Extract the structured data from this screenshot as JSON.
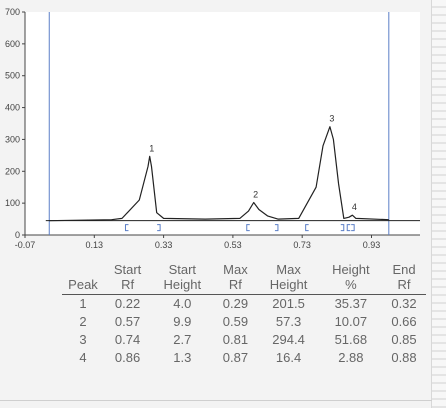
{
  "chart_data": {
    "type": "line",
    "xlim": [
      -0.07,
      1.07
    ],
    "ylim": [
      0,
      700
    ],
    "x_ticks": [
      "-0.07",
      "0.13",
      "0.33",
      "0.53",
      "0.73",
      "0.93"
    ],
    "y_ticks": [
      "0",
      "100",
      "200",
      "300",
      "400",
      "500",
      "600",
      "700"
    ],
    "baseline": 45,
    "front_rf": 0.0,
    "end_rf": 0.98,
    "series": [
      {
        "values": [
          [
            0.0,
            45
          ],
          [
            0.18,
            48
          ],
          [
            0.21,
            52
          ],
          [
            0.26,
            110
          ],
          [
            0.285,
            215
          ],
          [
            0.29,
            247
          ],
          [
            0.295,
            215
          ],
          [
            0.31,
            70
          ],
          [
            0.33,
            52
          ],
          [
            0.45,
            50
          ],
          [
            0.55,
            52
          ],
          [
            0.575,
            75
          ],
          [
            0.59,
            102
          ],
          [
            0.605,
            80
          ],
          [
            0.63,
            60
          ],
          [
            0.66,
            50
          ],
          [
            0.72,
            52
          ],
          [
            0.77,
            150
          ],
          [
            0.79,
            280
          ],
          [
            0.81,
            340
          ],
          [
            0.82,
            300
          ],
          [
            0.835,
            160
          ],
          [
            0.85,
            52
          ],
          [
            0.865,
            56
          ],
          [
            0.875,
            62
          ],
          [
            0.885,
            52
          ],
          [
            0.98,
            48
          ]
        ]
      }
    ],
    "peaks": [
      {
        "label": "1",
        "x": 0.29,
        "y": 247
      },
      {
        "label": "2",
        "x": 0.59,
        "y": 102
      },
      {
        "label": "3",
        "x": 0.81,
        "y": 340
      },
      {
        "label": "4",
        "x": 0.875,
        "y": 62
      }
    ],
    "brackets": [
      {
        "start": 0.22,
        "end": 0.32
      },
      {
        "start": 0.57,
        "end": 0.66
      },
      {
        "start": 0.74,
        "end": 0.85
      },
      {
        "start": 0.86,
        "end": 0.88
      }
    ]
  },
  "table": {
    "headers": [
      {
        "line1": "",
        "line2": "Peak"
      },
      {
        "line1": "Start",
        "line2": "Rf"
      },
      {
        "line1": "Start",
        "line2": "Height"
      },
      {
        "line1": "Max",
        "line2": "Rf"
      },
      {
        "line1": "Max",
        "line2": "Height"
      },
      {
        "line1": "Height",
        "line2": "%"
      },
      {
        "line1": "End",
        "line2": "Rf"
      }
    ],
    "rows": [
      [
        "1",
        "0.22",
        "4.0",
        "0.29",
        "201.5",
        "35.37",
        "0.32"
      ],
      [
        "2",
        "0.57",
        "9.9",
        "0.59",
        "57.3",
        "10.07",
        "0.66"
      ],
      [
        "3",
        "0.74",
        "2.7",
        "0.81",
        "294.4",
        "51.68",
        "0.85"
      ],
      [
        "4",
        "0.86",
        "1.3",
        "0.87",
        "16.4",
        "2.88",
        "0.88"
      ]
    ]
  },
  "colors": {
    "trace": "#222222",
    "vertical_markers": "#5b7fc7",
    "baseline": "#222222",
    "brackets": "#5b7fc7",
    "axis": "#444444",
    "plot_bg": "#ffffff"
  }
}
